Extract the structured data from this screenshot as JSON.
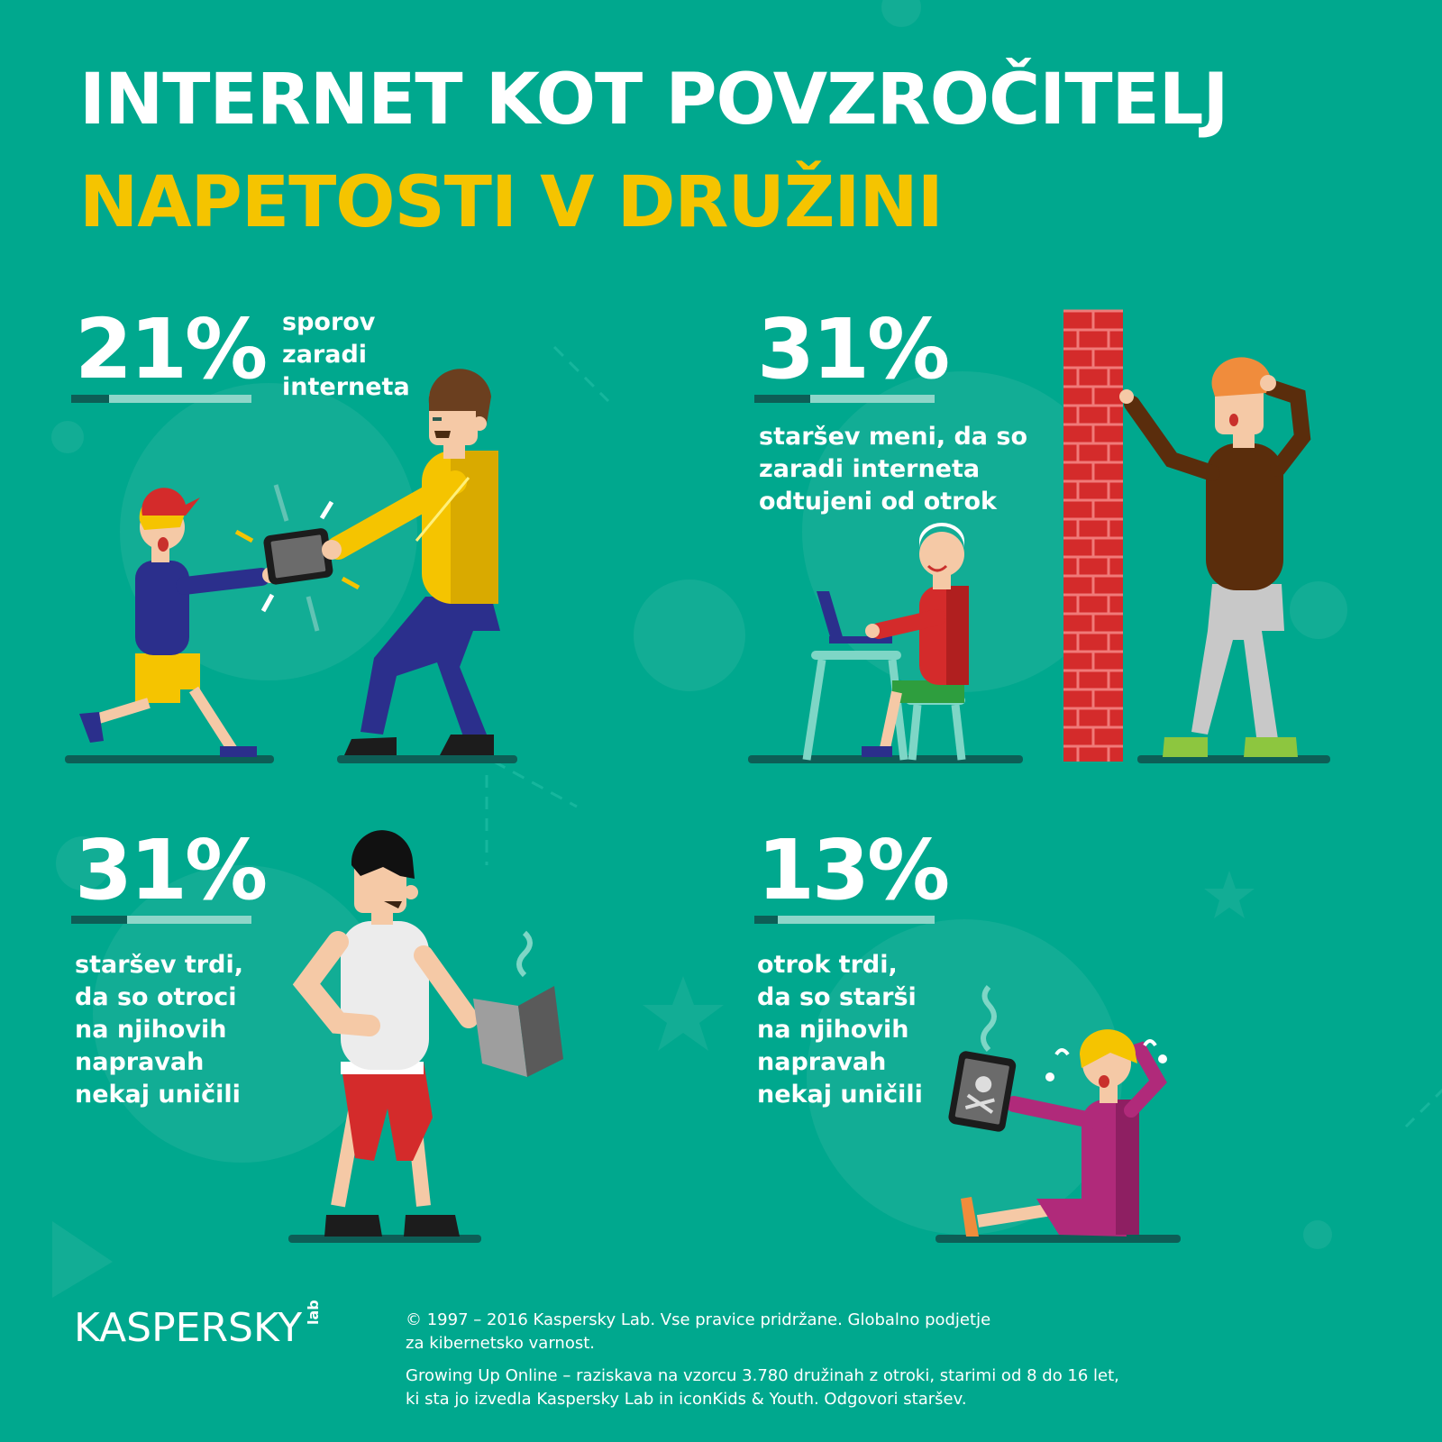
{
  "title": {
    "line1": "INTERNET KOT POVZROČITELJ",
    "line2": "NAPETOSTI V DRUŽINI"
  },
  "stats": [
    {
      "value": "21%",
      "fraction": 0.21,
      "lines": [
        "sporov",
        "zaradi",
        "interneta"
      ]
    },
    {
      "value": "31%",
      "fraction": 0.31,
      "lines": [
        "staršev meni, da so",
        "zaradi interneta",
        "odtujeni od otrok"
      ]
    },
    {
      "value": "31%",
      "fraction": 0.31,
      "lines": [
        "staršev trdi,",
        "da so otroci",
        "na njihovih",
        "napravah",
        "nekaj uničili"
      ]
    },
    {
      "value": "13%",
      "fraction": 0.13,
      "lines": [
        "otrok trdi,",
        "da so starši",
        "na njihovih",
        "napravah",
        "nekaj uničili"
      ]
    }
  ],
  "logo": {
    "name": "KASPERSKY",
    "sub": "lab"
  },
  "footer": {
    "copyright_1": "© 1997 – 2016 Kaspersky Lab. Vse pravice pridržane. Globalno podjetje",
    "copyright_2": "za kibernetsko varnost.",
    "survey_1": "Growing Up Online – raziskava na vzorcu 3.780 družinah z otroki, starimi od 8 do 16 let,",
    "survey_2": "ki sta jo izvedla Kaspersky Lab in iconKids & Youth. Odgovori staršev."
  },
  "colors": {
    "background": "#00a88e",
    "title_accent": "#f5c400",
    "bar_track": "#8ed6c9",
    "bar_fill": "#0d5e56"
  }
}
